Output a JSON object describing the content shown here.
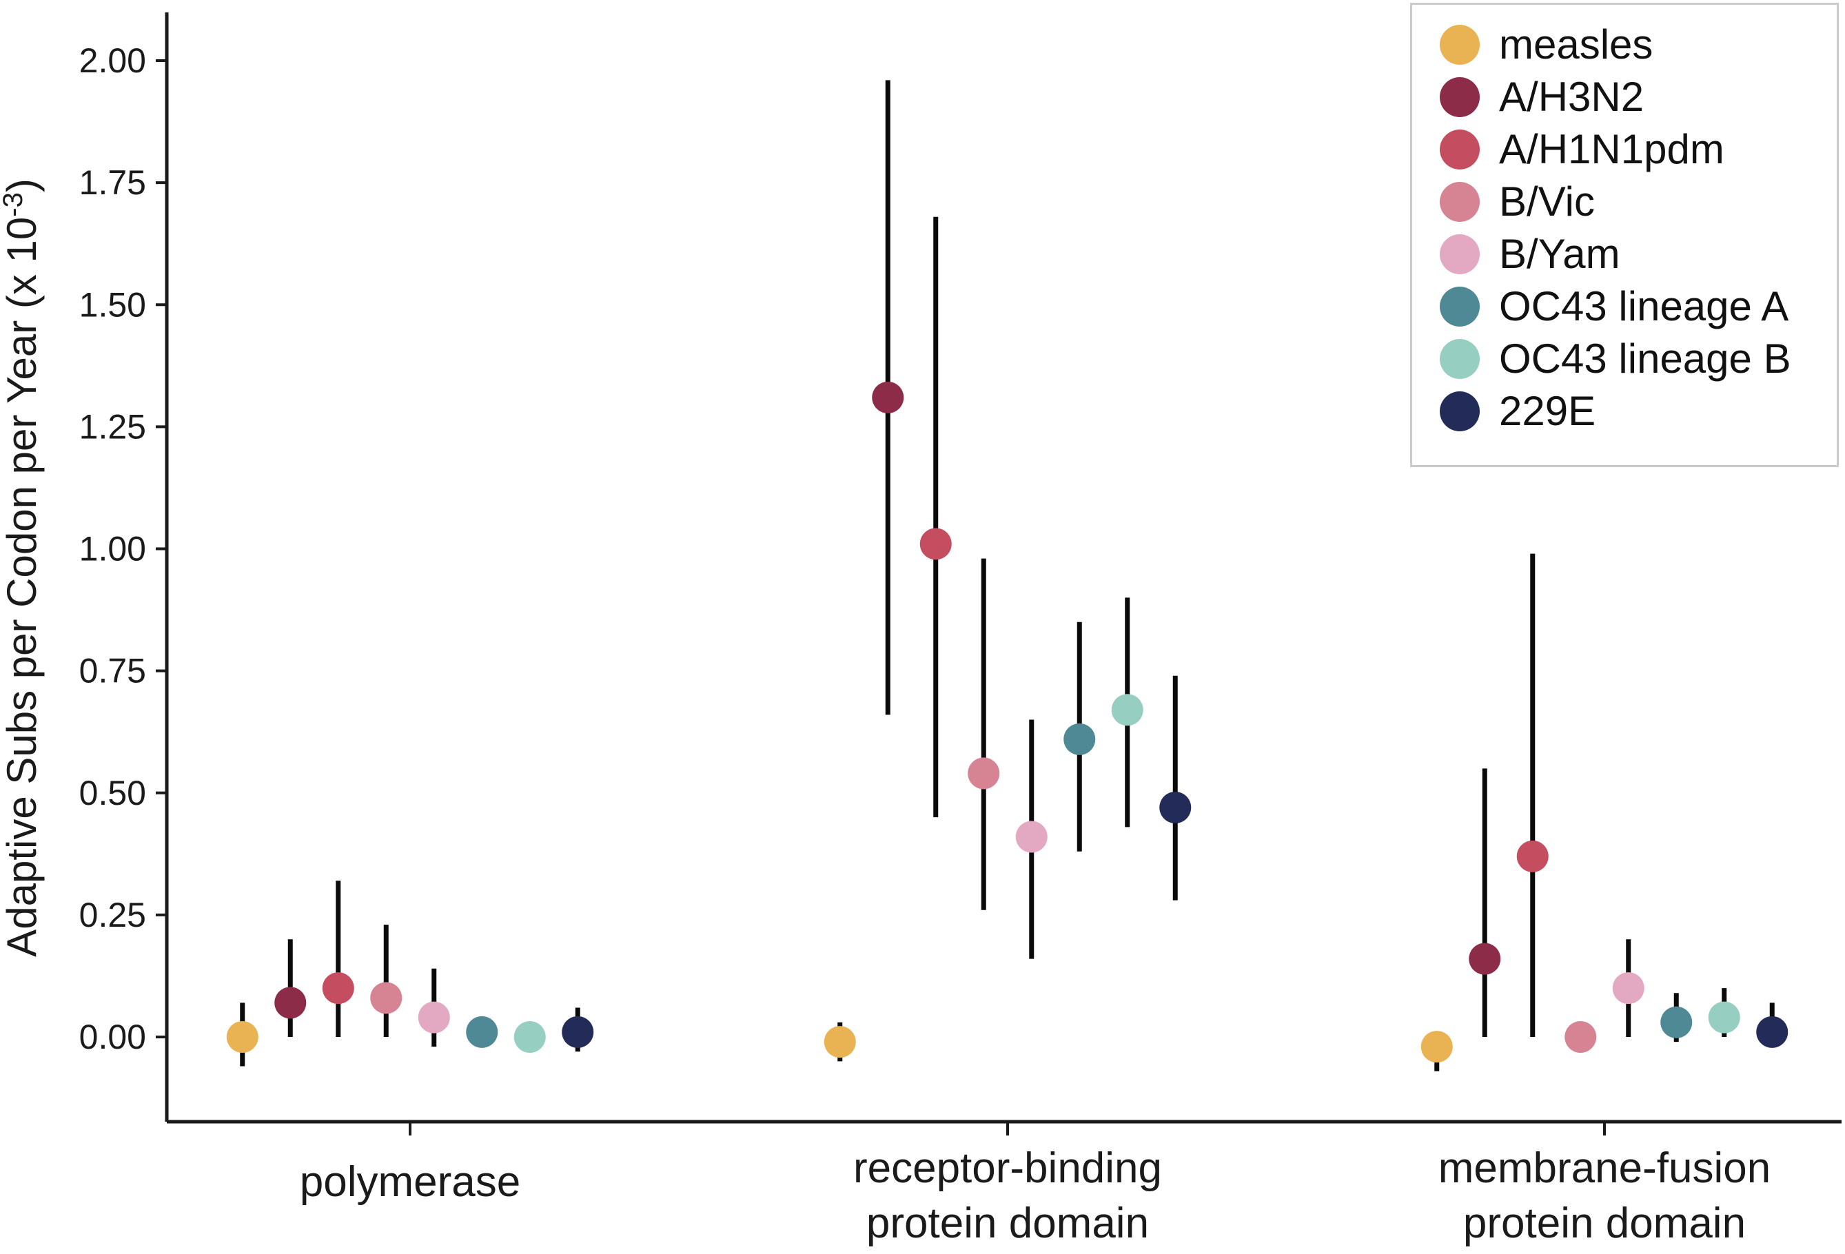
{
  "chart_data": {
    "type": "scatter",
    "title": "",
    "ylabel_main": "Adaptive Subs per Codon per Year (x 10",
    "ylabel_sup": "-3",
    "ylabel_close": ")",
    "yticks": [
      "0.00",
      "0.25",
      "0.50",
      "0.75",
      "1.00",
      "1.25",
      "1.50",
      "1.75",
      "2.00"
    ],
    "ytick_values": [
      0,
      0.25,
      0.5,
      0.75,
      1.0,
      1.25,
      1.5,
      1.75,
      2.0
    ],
    "ylim": [
      -0.17,
      2.09
    ],
    "grid": "off",
    "legend_position": "upper right",
    "categories": [
      {
        "lines": [
          "polymerase"
        ]
      },
      {
        "lines": [
          "receptor-binding",
          "protein domain"
        ]
      },
      {
        "lines": [
          "membrane-fusion",
          "protein domain"
        ]
      }
    ],
    "series": [
      {
        "name": "measles",
        "color": "#E9B354",
        "points": [
          {
            "v": 0.0,
            "lo": -0.06,
            "hi": 0.07
          },
          {
            "v": -0.01,
            "lo": -0.05,
            "hi": 0.03
          },
          {
            "v": -0.02,
            "lo": -0.07,
            "hi": 0.01
          }
        ]
      },
      {
        "name": "A/H3N2",
        "color": "#8C2C49",
        "points": [
          {
            "v": 0.07,
            "lo": 0.0,
            "hi": 0.2
          },
          {
            "v": 1.31,
            "lo": 0.66,
            "hi": 1.96
          },
          {
            "v": 0.16,
            "lo": 0.0,
            "hi": 0.55
          }
        ]
      },
      {
        "name": "A/H1N1pdm",
        "color": "#C44D60",
        "points": [
          {
            "v": 0.1,
            "lo": 0.0,
            "hi": 0.32
          },
          {
            "v": 1.01,
            "lo": 0.45,
            "hi": 1.68
          },
          {
            "v": 0.37,
            "lo": 0.0,
            "hi": 0.99
          }
        ]
      },
      {
        "name": "B/Vic",
        "color": "#D68394",
        "points": [
          {
            "v": 0.08,
            "lo": 0.0,
            "hi": 0.23
          },
          {
            "v": 0.54,
            "lo": 0.26,
            "hi": 0.98
          },
          {
            "v": 0.0,
            "lo": -0.03,
            "hi": 0.03
          }
        ]
      },
      {
        "name": "B/Yam",
        "color": "#E3A9C3",
        "points": [
          {
            "v": 0.04,
            "lo": -0.02,
            "hi": 0.14
          },
          {
            "v": 0.41,
            "lo": 0.16,
            "hi": 0.65
          },
          {
            "v": 0.1,
            "lo": 0.0,
            "hi": 0.2
          }
        ]
      },
      {
        "name": "OC43 lineage A",
        "color": "#4E8995",
        "points": [
          {
            "v": 0.01,
            "lo": -0.01,
            "hi": 0.03
          },
          {
            "v": 0.61,
            "lo": 0.38,
            "hi": 0.85
          },
          {
            "v": 0.03,
            "lo": -0.01,
            "hi": 0.09
          }
        ]
      },
      {
        "name": "OC43 lineage B",
        "color": "#96CFC1",
        "points": [
          {
            "v": 0.0,
            "lo": -0.01,
            "hi": 0.01
          },
          {
            "v": 0.67,
            "lo": 0.43,
            "hi": 0.9
          },
          {
            "v": 0.04,
            "lo": 0.0,
            "hi": 0.1
          }
        ]
      },
      {
        "name": "229E",
        "color": "#232C58",
        "points": [
          {
            "v": 0.01,
            "lo": -0.03,
            "hi": 0.06
          },
          {
            "v": 0.47,
            "lo": 0.28,
            "hi": 0.74
          },
          {
            "v": 0.01,
            "lo": -0.02,
            "hi": 0.07
          }
        ]
      }
    ]
  }
}
